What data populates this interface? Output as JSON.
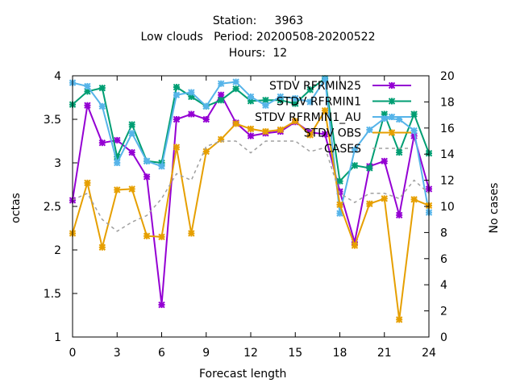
{
  "chart_data": {
    "type": "line",
    "title_lines": [
      "Station:     3963",
      "Low clouds   Period: 20200508-20200522",
      "Hours:  12"
    ],
    "xlabel": "Forecast length",
    "ylabel": "octas",
    "y2label": "No cases",
    "xlim": [
      0,
      24
    ],
    "ylim": [
      1,
      4
    ],
    "y2lim": [
      0,
      20
    ],
    "xticks": [
      "0",
      "3",
      "6",
      "9",
      "12",
      "15",
      "18",
      "21",
      "24"
    ],
    "yticks": [
      "1",
      "1.5",
      "2",
      "2.5",
      "3",
      "3.5",
      "4"
    ],
    "y2ticks": [
      "0",
      "2",
      "4",
      "6",
      "8",
      "10",
      "12",
      "14",
      "16",
      "18",
      "20"
    ],
    "grid": false,
    "legend_position": "top-right",
    "x": [
      0,
      1,
      2,
      3,
      4,
      5,
      6,
      7,
      8,
      9,
      10,
      11,
      12,
      13,
      14,
      15,
      16,
      17,
      18,
      19,
      20,
      21,
      22,
      23,
      24
    ],
    "series": [
      {
        "name": "STDV RFRMIN25",
        "color": "#9400d3",
        "axis": "y",
        "values": [
          2.57,
          3.66,
          3.23,
          3.26,
          3.12,
          2.84,
          1.37,
          3.5,
          3.56,
          3.5,
          3.78,
          3.46,
          3.31,
          3.34,
          3.36,
          3.47,
          3.35,
          3.33,
          2.67,
          2.09,
          2.96,
          3.02,
          2.4,
          3.31,
          2.7
        ]
      },
      {
        "name": "STDV RFRMIN1",
        "color": "#009e73",
        "axis": "y",
        "values": [
          3.67,
          3.82,
          3.86,
          3.07,
          3.44,
          3.02,
          3.0,
          3.87,
          3.76,
          3.65,
          3.72,
          3.85,
          3.71,
          3.72,
          3.72,
          3.68,
          3.84,
          3.97,
          2.79,
          2.97,
          2.94,
          3.56,
          3.12,
          3.56,
          3.11
        ]
      },
      {
        "name": "STDV RFRMIN1_AU",
        "color": "#56b4e9",
        "axis": "y",
        "values": [
          3.92,
          3.88,
          3.65,
          3.0,
          3.34,
          3.02,
          2.96,
          3.78,
          3.81,
          3.65,
          3.91,
          3.93,
          3.76,
          3.66,
          3.76,
          3.74,
          3.7,
          3.96,
          2.42,
          3.15,
          3.38,
          3.51,
          3.5,
          3.37,
          2.43
        ]
      },
      {
        "name": "STDV OBS",
        "color": "#e69f00",
        "axis": "y",
        "values": [
          2.19,
          2.77,
          2.03,
          2.69,
          2.7,
          2.16,
          2.15,
          3.18,
          2.19,
          3.13,
          3.27,
          3.45,
          3.39,
          3.36,
          3.38,
          3.48,
          3.32,
          3.6,
          2.52,
          2.05,
          2.53,
          2.59,
          1.2,
          2.58,
          2.51
        ]
      },
      {
        "name": "CASES",
        "color": "#a0a0a0",
        "axis": "y2",
        "dashed": true,
        "values": [
          10.5,
          11.0,
          9.0,
          8.1,
          8.8,
          9.3,
          10.6,
          12.5,
          12.0,
          14.6,
          15.0,
          15.0,
          14.1,
          15.0,
          15.0,
          15.0,
          14.2,
          14.5,
          11.0,
          10.3,
          11.0,
          11.0,
          10.6,
          12.0,
          11.0
        ]
      }
    ]
  }
}
